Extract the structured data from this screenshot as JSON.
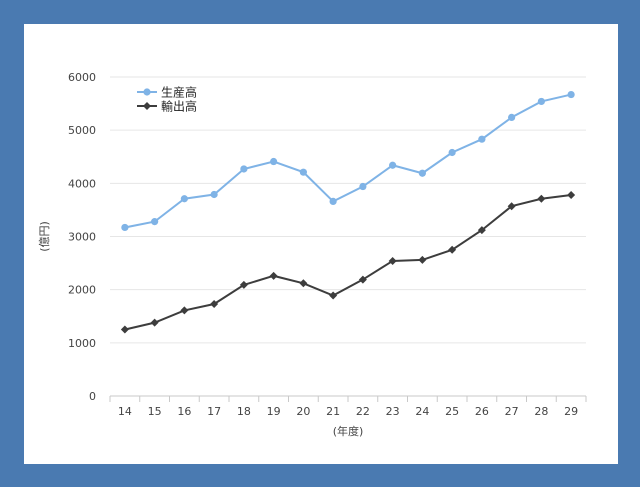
{
  "chart_data": {
    "type": "line",
    "x": [
      "14",
      "15",
      "16",
      "17",
      "18",
      "19",
      "20",
      "21",
      "22",
      "23",
      "24",
      "25",
      "26",
      "27",
      "28",
      "29"
    ],
    "xlabel": "(年度)",
    "ylabel": "(億円)",
    "ylim": [
      0,
      6000
    ],
    "yticks": [
      0,
      1000,
      2000,
      3000,
      4000,
      5000,
      6000
    ],
    "grid": true,
    "legend": "top-left",
    "series": [
      {
        "name": "生産高",
        "color": "#7fb3e6",
        "marker": "circle",
        "values": [
          3170,
          3280,
          3710,
          3790,
          4270,
          4410,
          4210,
          3660,
          3940,
          4340,
          4190,
          4580,
          4830,
          5240,
          5540,
          5670
        ]
      },
      {
        "name": "輸出高",
        "color": "#3d3d3d",
        "marker": "diamond",
        "values": [
          1250,
          1380,
          1610,
          1730,
          2090,
          2260,
          2120,
          1890,
          2190,
          2540,
          2560,
          2750,
          3120,
          3570,
          3710,
          3780
        ]
      }
    ]
  }
}
